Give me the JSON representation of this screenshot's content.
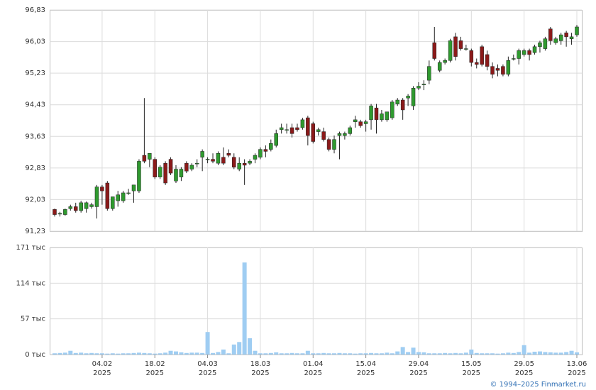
{
  "chart_data": [
    {
      "type": "candlestick",
      "series": [
        {
          "up_color": "#2f9a2f",
          "down_color": "#8b1a1a",
          "open": [
            91.78,
            91.68,
            91.65,
            91.8,
            91.85,
            91.75,
            91.8,
            91.85,
            91.85,
            92.35,
            92.45,
            91.8,
            92.0,
            92.0,
            92.2,
            92.25,
            92.25,
            93.15,
            93.05,
            93.05,
            92.6,
            92.95,
            93.05,
            92.5,
            92.6,
            92.95,
            92.8,
            92.95,
            93.1,
            93.05,
            93.05,
            92.95,
            93.1,
            93.2,
            93.1,
            92.8,
            92.95,
            92.95,
            93.05,
            93.1,
            93.3,
            93.3,
            93.4,
            93.8,
            93.8,
            93.85,
            93.85,
            93.85,
            94.1,
            93.95,
            93.75,
            93.75,
            93.55,
            93.3,
            93.65,
            93.65,
            93.7,
            94.0,
            94.0,
            93.95,
            94.05,
            94.35,
            94.05,
            94.05,
            94.1,
            94.45,
            94.55,
            94.6,
            94.4,
            94.85,
            94.95,
            95.05,
            96.0,
            95.3,
            95.5,
            95.55,
            96.15,
            96.05,
            95.85,
            95.8,
            95.5,
            95.9,
            95.7,
            95.4,
            95.35,
            95.4,
            95.2,
            95.6,
            95.6,
            95.7,
            95.8,
            95.75,
            95.9,
            95.85,
            96.35,
            96.0,
            96.05,
            96.25,
            96.1,
            96.2
          ],
          "high": [
            91.8,
            91.72,
            91.8,
            91.9,
            91.95,
            92.0,
            91.98,
            91.95,
            92.4,
            92.4,
            92.5,
            92.1,
            92.25,
            92.25,
            92.3,
            92.4,
            93.05,
            94.6,
            93.2,
            93.1,
            92.9,
            93.0,
            93.1,
            92.9,
            92.85,
            93.0,
            92.95,
            93.05,
            93.3,
            93.1,
            93.2,
            93.25,
            93.35,
            93.3,
            93.2,
            93.1,
            93.05,
            93.05,
            93.2,
            93.35,
            93.4,
            93.55,
            93.8,
            93.95,
            93.95,
            93.95,
            93.95,
            94.1,
            94.15,
            94.0,
            93.85,
            93.85,
            93.6,
            93.65,
            93.75,
            93.75,
            93.9,
            94.15,
            94.05,
            94.05,
            94.45,
            94.45,
            94.3,
            94.25,
            94.55,
            94.6,
            94.6,
            94.7,
            94.9,
            95.0,
            95.05,
            95.55,
            96.4,
            95.55,
            95.6,
            96.1,
            96.25,
            96.15,
            95.95,
            95.85,
            95.6,
            95.95,
            95.8,
            95.5,
            95.45,
            95.45,
            95.65,
            95.7,
            95.85,
            95.85,
            95.85,
            95.95,
            96.05,
            96.15,
            96.4,
            96.15,
            96.25,
            96.3,
            96.25,
            96.45
          ],
          "low": [
            91.6,
            91.6,
            91.62,
            91.75,
            91.7,
            91.7,
            91.7,
            91.8,
            91.55,
            91.9,
            91.75,
            91.75,
            91.85,
            91.95,
            92.15,
            91.95,
            92.2,
            92.95,
            92.85,
            92.55,
            92.55,
            92.4,
            92.65,
            92.45,
            92.5,
            92.7,
            92.75,
            92.85,
            92.75,
            92.95,
            92.95,
            92.9,
            92.9,
            93.1,
            92.8,
            92.75,
            92.4,
            92.9,
            92.95,
            93.05,
            93.1,
            93.25,
            93.35,
            93.7,
            93.7,
            93.6,
            93.75,
            93.8,
            93.4,
            93.45,
            93.65,
            93.5,
            93.25,
            93.2,
            93.05,
            93.55,
            93.65,
            93.85,
            93.85,
            93.75,
            93.8,
            93.7,
            94.0,
            94.0,
            94.05,
            94.4,
            94.05,
            94.4,
            94.3,
            94.8,
            94.8,
            94.95,
            95.55,
            95.25,
            95.45,
            95.5,
            95.55,
            95.8,
            95.8,
            95.4,
            95.35,
            95.4,
            95.3,
            95.1,
            95.15,
            95.15,
            95.15,
            95.55,
            95.45,
            95.65,
            95.55,
            95.7,
            95.75,
            95.8,
            95.95,
            95.95,
            95.95,
            95.9,
            95.95,
            96.15
          ],
          "close": [
            91.65,
            91.68,
            91.78,
            91.85,
            91.75,
            91.95,
            91.95,
            91.9,
            92.35,
            92.25,
            91.8,
            92.1,
            92.15,
            92.2,
            92.2,
            92.4,
            93.0,
            93.0,
            93.2,
            92.6,
            92.85,
            92.45,
            92.7,
            92.8,
            92.8,
            92.75,
            92.9,
            92.95,
            93.25,
            93.05,
            93.0,
            93.2,
            92.95,
            93.15,
            92.85,
            92.95,
            92.9,
            93.0,
            93.15,
            93.3,
            93.25,
            93.45,
            93.7,
            93.85,
            93.8,
            93.7,
            93.8,
            94.05,
            93.65,
            93.5,
            93.8,
            93.55,
            93.3,
            93.55,
            93.7,
            93.7,
            93.85,
            94.05,
            93.9,
            94.0,
            94.4,
            94.05,
            94.2,
            94.25,
            94.5,
            94.55,
            94.3,
            94.65,
            94.85,
            94.9,
            94.95,
            95.4,
            95.6,
            95.5,
            95.55,
            96.05,
            95.65,
            95.85,
            95.85,
            95.5,
            95.45,
            95.45,
            95.4,
            95.2,
            95.3,
            95.2,
            95.55,
            95.6,
            95.8,
            95.8,
            95.7,
            95.9,
            96.0,
            96.1,
            96.05,
            96.1,
            96.2,
            96.15,
            96.15,
            96.4
          ]
        }
      ],
      "ylim": [
        91.23,
        96.83
      ],
      "yticks": [
        {
          "value": 91.23,
          "label": "91,23"
        },
        {
          "value": 92.03,
          "label": "92,03"
        },
        {
          "value": 92.83,
          "label": "92,83"
        },
        {
          "value": 93.63,
          "label": "93,63"
        },
        {
          "value": 94.43,
          "label": "94,43"
        },
        {
          "value": 95.23,
          "label": "95,23"
        },
        {
          "value": 96.03,
          "label": "96,03"
        },
        {
          "value": 96.83,
          "label": "96,83"
        }
      ],
      "xticks": [
        {
          "value": 9,
          "label": "04.02",
          "year": "2025"
        },
        {
          "value": 19,
          "label": "18.02",
          "year": "2025"
        },
        {
          "value": 29,
          "label": "04.03",
          "year": "2025"
        },
        {
          "value": 39,
          "label": "18.03",
          "year": "2025"
        },
        {
          "value": 49,
          "label": "01.04",
          "year": "2025"
        },
        {
          "value": 59,
          "label": "15.04",
          "year": "2025"
        },
        {
          "value": 69,
          "label": "29.04",
          "year": "2025"
        },
        {
          "value": 79,
          "label": "15.05",
          "year": "2025"
        },
        {
          "value": 89,
          "label": "29.05",
          "year": "2025"
        },
        {
          "value": 99,
          "label": "13.06",
          "year": "2025"
        }
      ],
      "grid": true
    },
    {
      "type": "bar",
      "color": "#9fcdf2",
      "values": [
        2000,
        2500,
        3000,
        6000,
        2500,
        3000,
        2000,
        2500,
        2000,
        2000,
        1500,
        2000,
        1500,
        2000,
        2000,
        2500,
        3000,
        2500,
        2000,
        1500,
        2000,
        3000,
        6000,
        5000,
        3500,
        2500,
        3000,
        3000,
        2500,
        36000,
        2500,
        4000,
        8000,
        2000,
        16000,
        20000,
        147000,
        26000,
        6000,
        2000,
        2000,
        2500,
        3500,
        2000,
        2000,
        2500,
        2000,
        2000,
        6000,
        2000,
        2000,
        2500,
        2000,
        2000,
        2500,
        2000,
        2000,
        1500,
        2000,
        2000,
        2500,
        2000,
        2000,
        3000,
        2000,
        5000,
        12000,
        4000,
        11000,
        4000,
        3500,
        2000,
        2000,
        2000,
        2500,
        2000,
        2500,
        2000,
        3000,
        8000,
        2500,
        2000,
        2000,
        2000,
        1500,
        2000,
        3000,
        2500,
        4000,
        15000,
        3000,
        4500,
        5000,
        4000,
        3500,
        3000,
        3000,
        4000,
        6000,
        3500
      ],
      "ylim": [
        0,
        171000
      ],
      "yticks": [
        {
          "value": 0,
          "label": "0 тыс"
        },
        {
          "value": 57000,
          "label": "57 тыс"
        },
        {
          "value": 114000,
          "label": "114 тыс"
        },
        {
          "value": 171000,
          "label": "171 тыс"
        }
      ],
      "grid": true
    }
  ],
  "copyright": "© 1994–2025 Finmarket.ru"
}
